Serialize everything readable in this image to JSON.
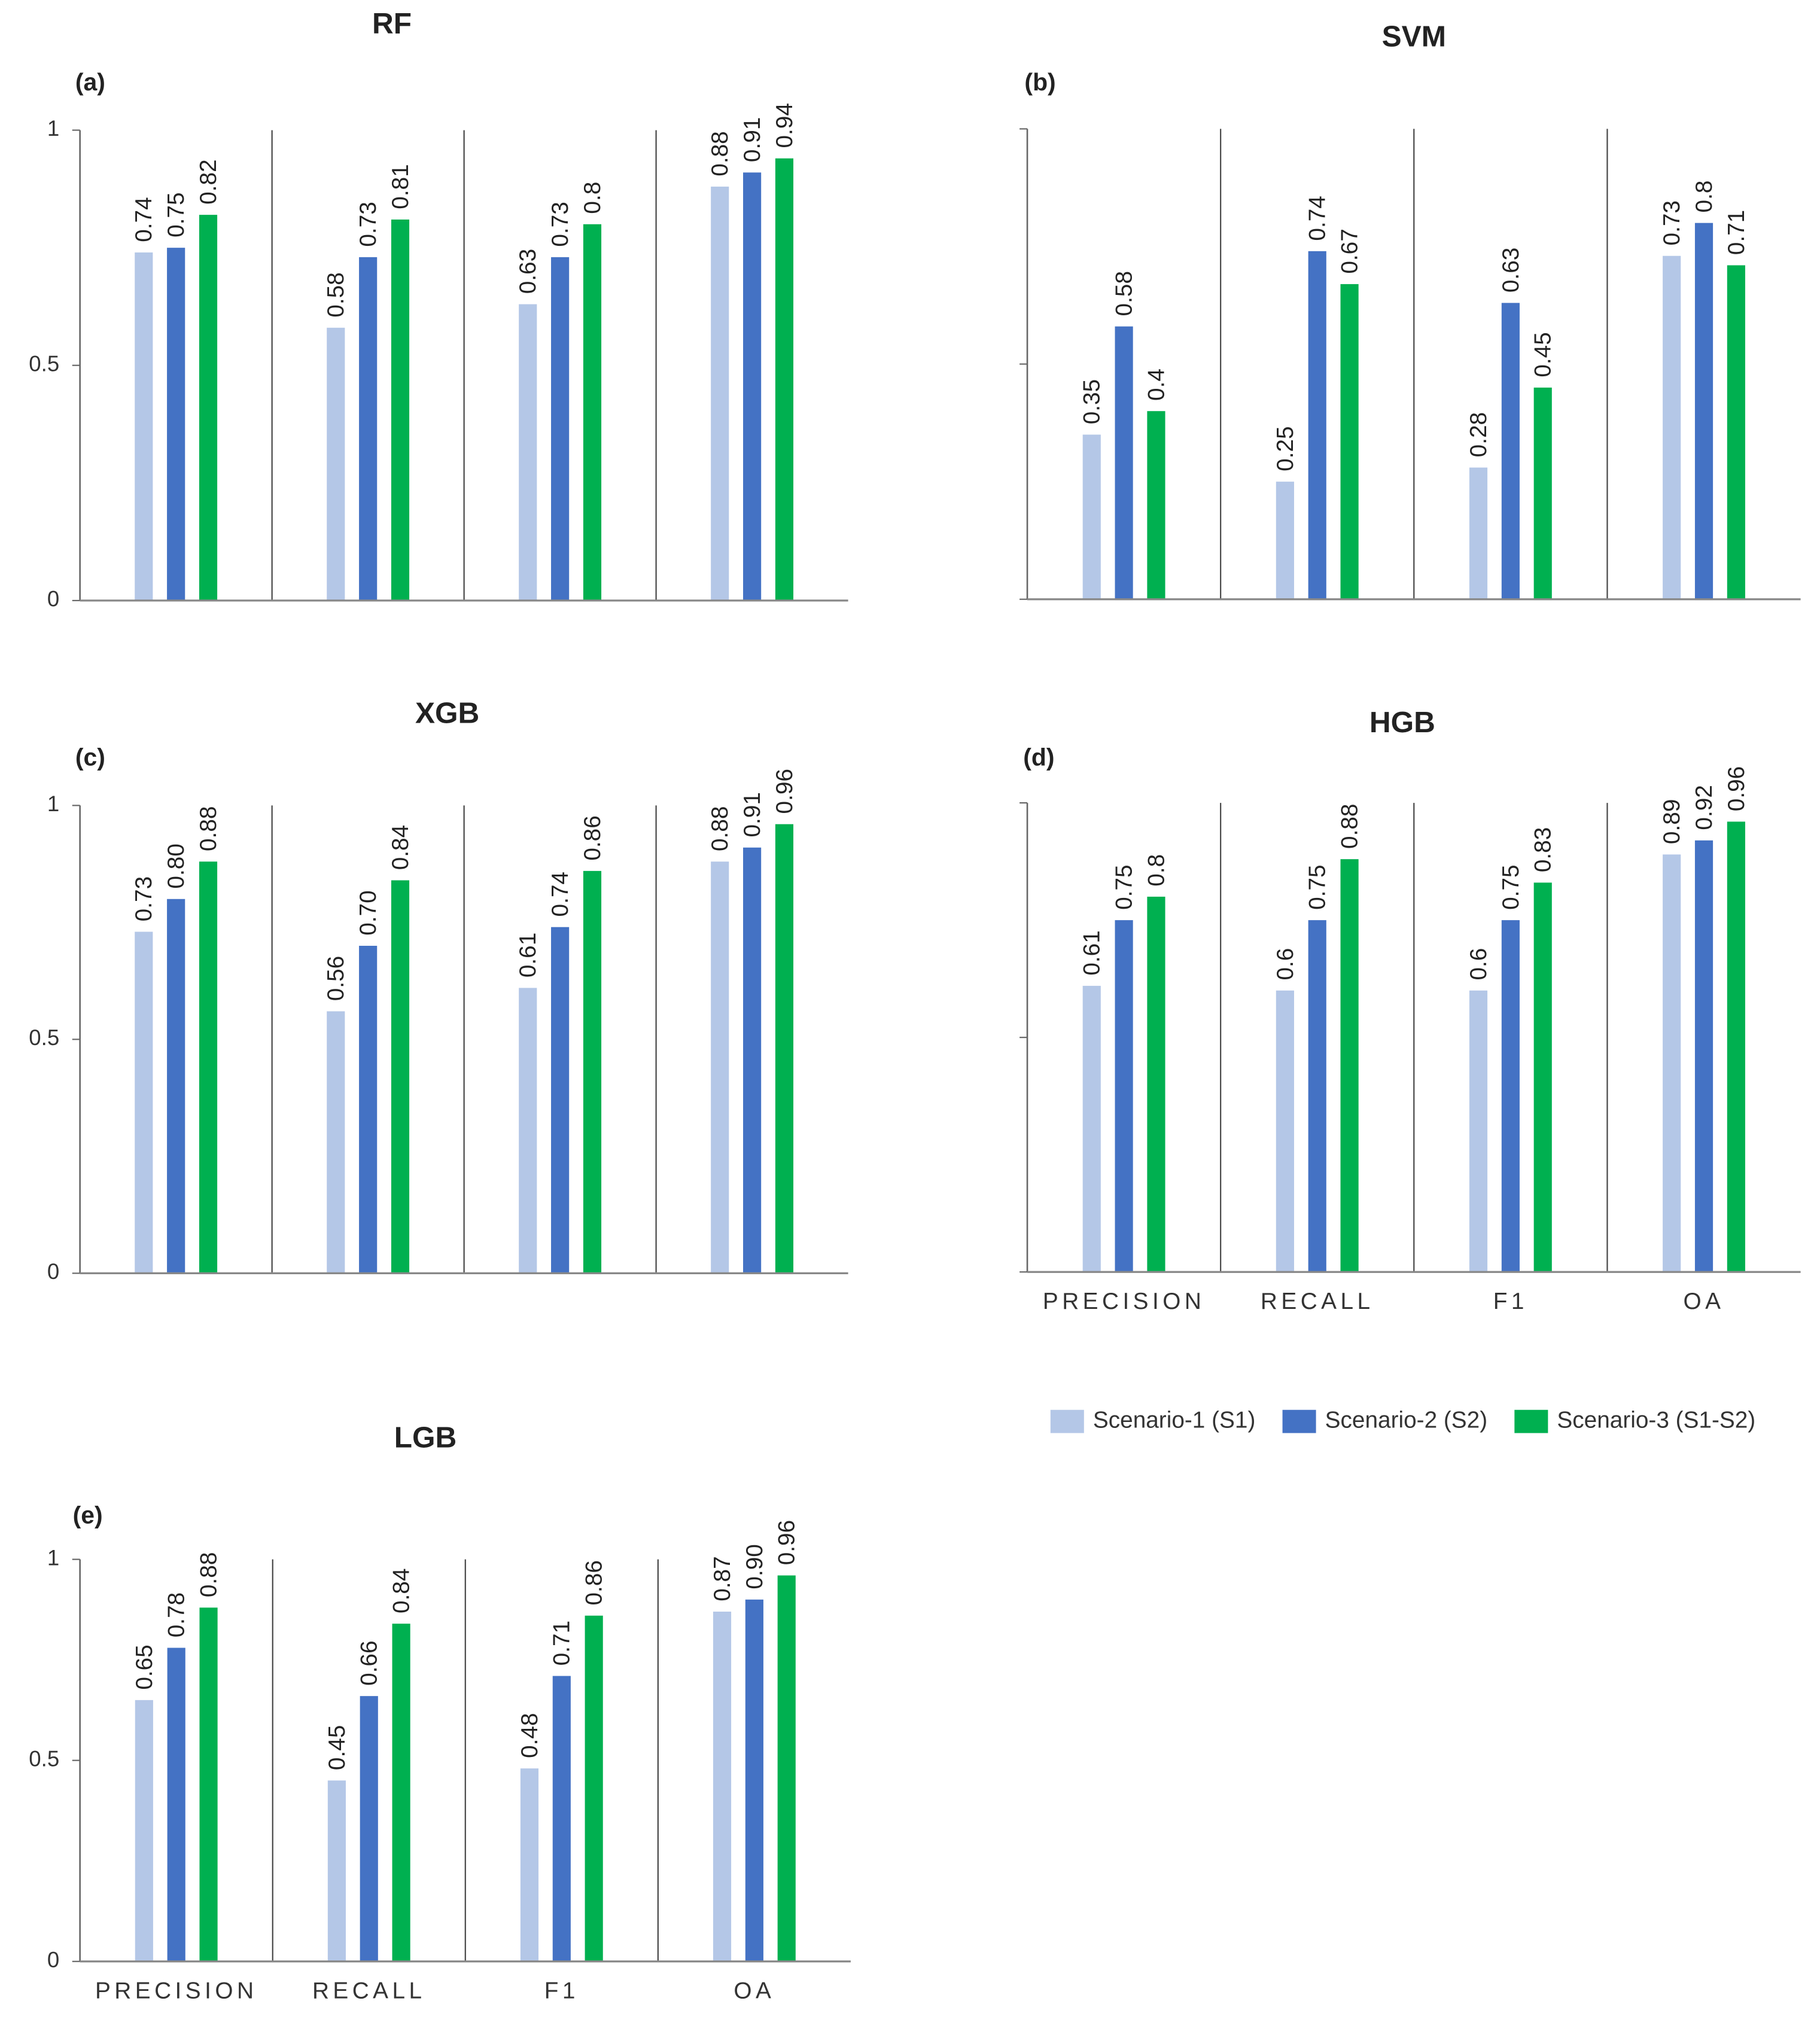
{
  "legend": {
    "series": [
      {
        "name": "Scenario-1 (S1)",
        "color": "#b4c7e7"
      },
      {
        "name": "Scenario-2 (S2)",
        "color": "#4472c4"
      },
      {
        "name": "Scenario-3 (S1-S2)",
        "color": "#00b050"
      }
    ]
  },
  "chart_data": [
    {
      "type": "bar",
      "title": "RF",
      "panel": "(a)",
      "ylim": [
        0,
        1
      ],
      "yticks": [
        0,
        0.5,
        1
      ],
      "tick_labels": true,
      "series": [
        {
          "values": [
            0.74,
            0.58,
            0.63,
            0.88
          ]
        },
        {
          "values": [
            0.75,
            0.73,
            0.73,
            0.91
          ]
        },
        {
          "values": [
            0.82,
            0.81,
            0.8,
            0.94
          ]
        }
      ]
    },
    {
      "type": "bar",
      "title": "SVM",
      "panel": "(b)",
      "ylim": [
        0,
        1
      ],
      "yticks": [
        0,
        0.5,
        1
      ],
      "tick_labels": false,
      "series": [
        {
          "values": [
            0.35,
            0.25,
            0.28,
            0.73
          ]
        },
        {
          "values": [
            0.58,
            0.74,
            0.63,
            0.8
          ]
        },
        {
          "values": [
            0.4,
            0.67,
            0.45,
            0.71
          ]
        }
      ]
    },
    {
      "type": "bar",
      "title": "XGB",
      "panel": "(c)",
      "ylim": [
        0,
        1
      ],
      "yticks": [
        0,
        0.5,
        1
      ],
      "tick_labels": true,
      "series": [
        {
          "values": [
            0.73,
            0.56,
            0.61,
            0.88
          ]
        },
        {
          "values": [
            0.8,
            0.7,
            0.74,
            0.91
          ],
          "value_labels": [
            "0.80",
            "0.70",
            "0.74",
            "0.91"
          ]
        },
        {
          "values": [
            0.88,
            0.84,
            0.86,
            0.96
          ]
        }
      ]
    },
    {
      "type": "bar",
      "title": "HGB",
      "panel": "(d)",
      "ylim": [
        0,
        1
      ],
      "yticks": [
        0,
        0.5,
        1
      ],
      "tick_labels": false,
      "categories": [
        "PRECISION",
        "RECALL",
        "F1",
        "OA"
      ],
      "series": [
        {
          "values": [
            0.61,
            0.6,
            0.6,
            0.89
          ]
        },
        {
          "values": [
            0.75,
            0.75,
            0.75,
            0.92
          ]
        },
        {
          "values": [
            0.8,
            0.88,
            0.83,
            0.96
          ]
        }
      ]
    },
    {
      "type": "bar",
      "title": "LGB",
      "panel": "(e)",
      "ylim": [
        0,
        1
      ],
      "yticks": [
        0,
        0.5,
        1
      ],
      "tick_labels": true,
      "categories": [
        "PRECISION",
        "RECALL",
        "F1",
        "OA"
      ],
      "series": [
        {
          "values": [
            0.65,
            0.45,
            0.48,
            0.87
          ]
        },
        {
          "values": [
            0.78,
            0.66,
            0.71,
            0.9
          ],
          "value_labels": [
            "0.78",
            "0.66",
            "0.71",
            "0.90"
          ]
        },
        {
          "values": [
            0.88,
            0.84,
            0.86,
            0.96
          ]
        }
      ]
    }
  ]
}
